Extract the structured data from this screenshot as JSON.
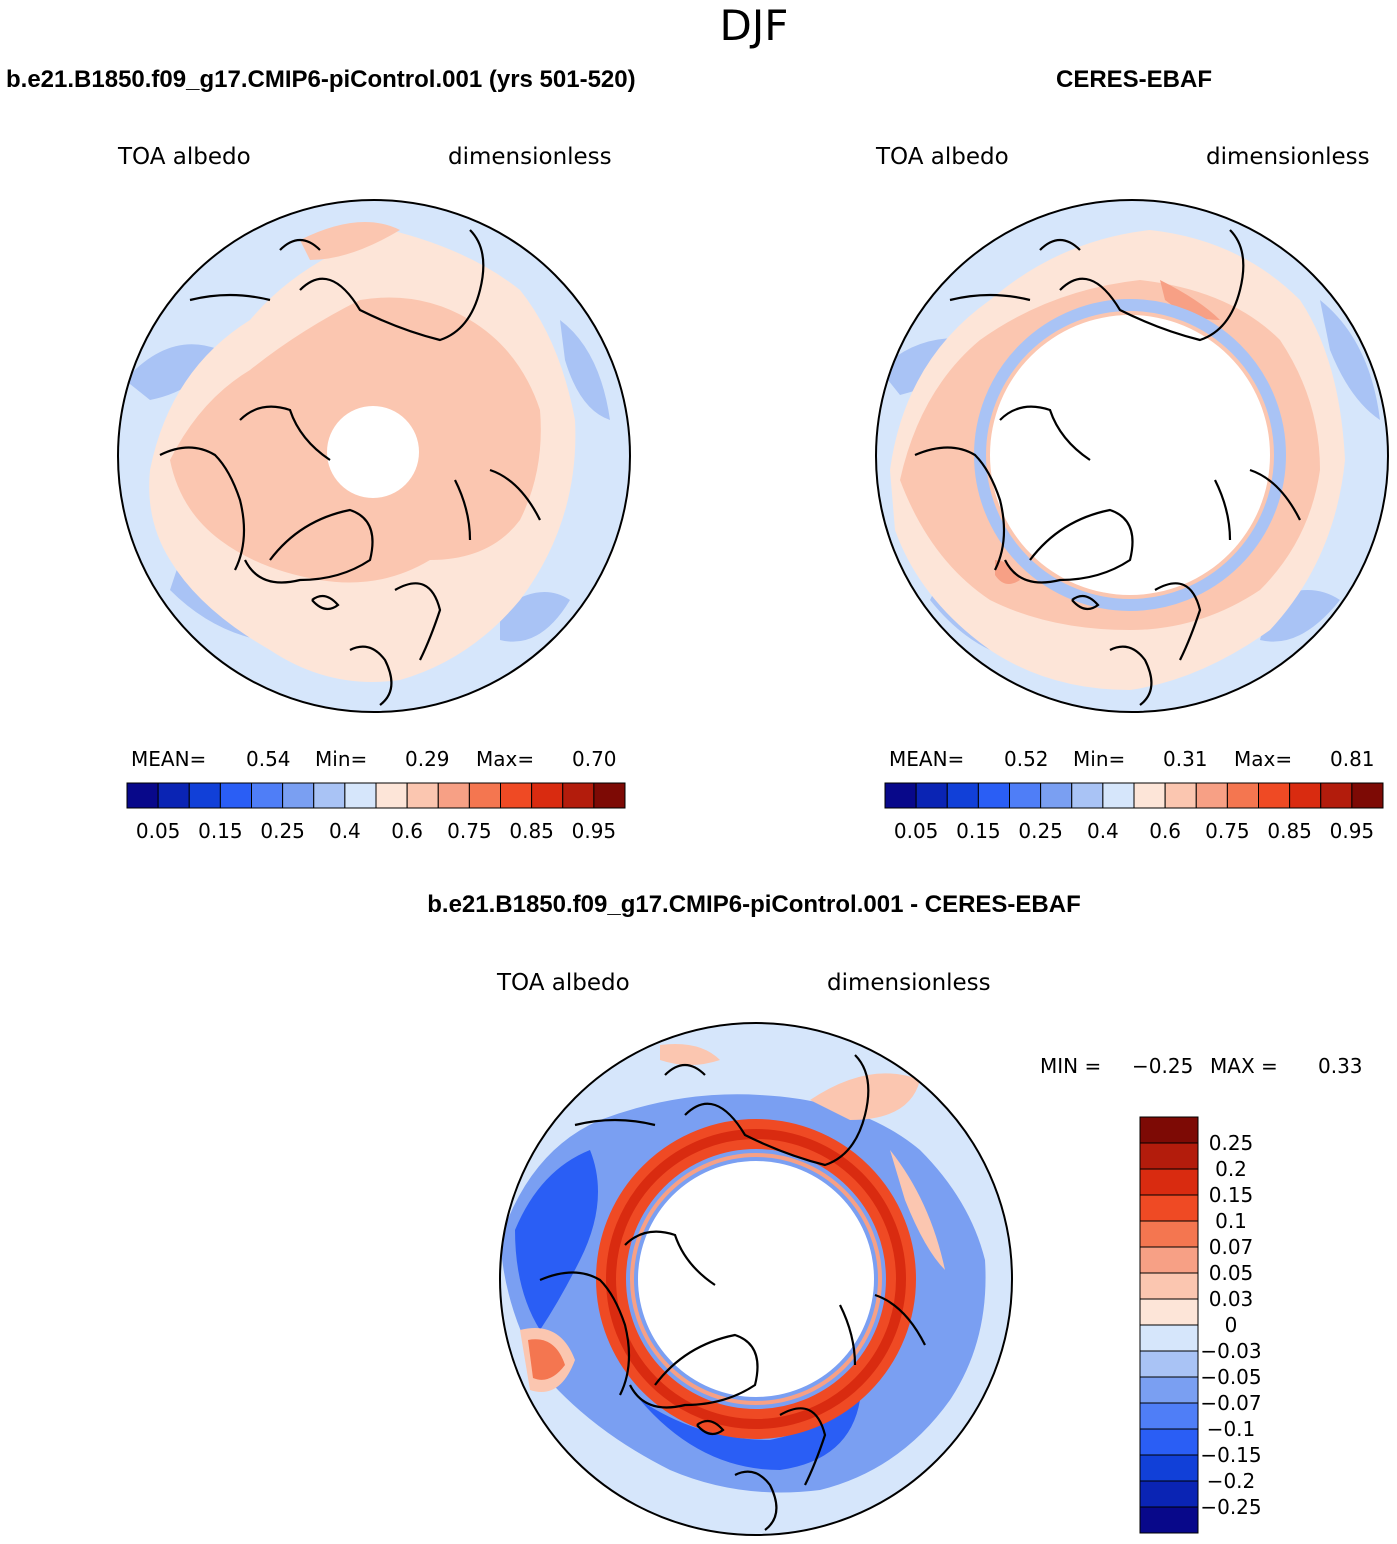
{
  "figure": {
    "season": "DJF"
  },
  "chart_data": [
    {
      "type": "heatmap",
      "projection": "north-polar-stereographic",
      "title": "b.e21.B1850.f09_g17.CMIP6-piControl.001 (yrs 501-520)",
      "left_label": "TOA albedo",
      "right_label": "dimensionless",
      "stats": {
        "mean_label": "MEAN=",
        "mean": "0.54",
        "min_label": "Min=",
        "min": "0.29",
        "max_label": "Max=",
        "max": "0.70"
      },
      "colorbar": {
        "orientation": "horizontal",
        "levels": [
          0.05,
          0.1,
          0.15,
          0.2,
          0.25,
          0.3,
          0.4,
          0.5,
          0.6,
          0.7,
          0.75,
          0.8,
          0.85,
          0.9,
          0.95
        ],
        "tick_labels": [
          "0.05",
          "0.15",
          "0.25",
          "0.4",
          "0.6",
          "0.75",
          "0.85",
          "0.95"
        ],
        "colors": [
          "#08088a",
          "#0a24b4",
          "#1140d8",
          "#2a5ef5",
          "#4f7ef7",
          "#7a9ff2",
          "#a9c3f5",
          "#d6e6fb",
          "#fde5d8",
          "#fbc6b0",
          "#f7a085",
          "#f47650",
          "#ef4a24",
          "#d92b10",
          "#b31c0c",
          "#7d0a05"
        ]
      }
    },
    {
      "type": "heatmap",
      "projection": "north-polar-stereographic",
      "title": "CERES-EBAF",
      "left_label": "TOA albedo",
      "right_label": "dimensionless",
      "stats": {
        "mean_label": "MEAN=",
        "mean": "0.52",
        "min_label": "Min=",
        "min": "0.31",
        "max_label": "Max=",
        "max": "0.81"
      },
      "colorbar": {
        "orientation": "horizontal",
        "levels": [
          0.05,
          0.1,
          0.15,
          0.2,
          0.25,
          0.3,
          0.4,
          0.5,
          0.6,
          0.7,
          0.75,
          0.8,
          0.85,
          0.9,
          0.95
        ],
        "tick_labels": [
          "0.05",
          "0.15",
          "0.25",
          "0.4",
          "0.6",
          "0.75",
          "0.85",
          "0.95"
        ],
        "colors": [
          "#08088a",
          "#0a24b4",
          "#1140d8",
          "#2a5ef5",
          "#4f7ef7",
          "#7a9ff2",
          "#a9c3f5",
          "#d6e6fb",
          "#fde5d8",
          "#fbc6b0",
          "#f7a085",
          "#f47650",
          "#ef4a24",
          "#d92b10",
          "#b31c0c",
          "#7d0a05"
        ]
      }
    },
    {
      "type": "heatmap",
      "projection": "north-polar-stereographic",
      "title": "b.e21.B1850.f09_g17.CMIP6-piControl.001 - CERES-EBAF",
      "left_label": "TOA albedo",
      "right_label": "dimensionless",
      "stats": {
        "min_label": "MIN =",
        "min": "−0.25",
        "max_label": "MAX =",
        "max": "0.33"
      },
      "colorbar": {
        "orientation": "vertical",
        "tick_labels": [
          "0.25",
          "0.2",
          "0.15",
          "0.1",
          "0.07",
          "0.05",
          "0.03",
          "0",
          "−0.03",
          "−0.05",
          "−0.07",
          "−0.1",
          "−0.15",
          "−0.2",
          "−0.25"
        ],
        "colors": [
          "#7d0a05",
          "#b31c0c",
          "#d92b10",
          "#ef4a24",
          "#f47650",
          "#f7a085",
          "#fbc6b0",
          "#fde5d8",
          "#d6e6fb",
          "#a9c3f5",
          "#7a9ff2",
          "#4f7ef7",
          "#2a5ef5",
          "#1140d8",
          "#0a24b4",
          "#08088a"
        ]
      }
    }
  ]
}
